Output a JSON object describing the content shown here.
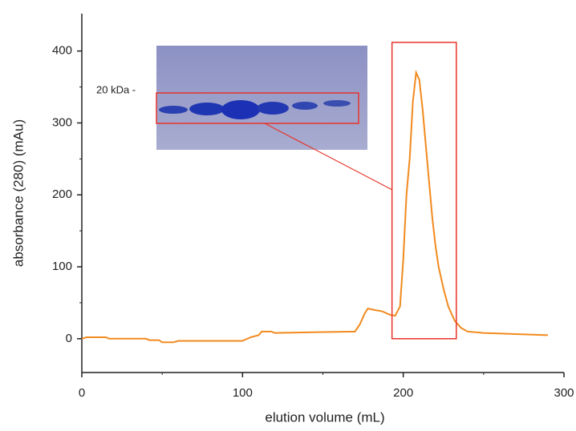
{
  "chart_data": {
    "type": "line",
    "xlabel": "elution volume (mL)",
    "ylabel": "absorbance (280) (mAu)",
    "x": [
      0,
      3,
      15,
      17,
      40,
      42,
      48,
      50,
      57,
      60,
      100,
      105,
      110,
      112,
      118,
      120,
      170,
      173,
      176,
      178,
      182,
      187,
      192,
      195,
      198,
      200,
      202,
      204,
      206,
      208,
      210,
      212,
      214,
      216,
      218,
      220,
      222,
      225,
      228,
      232,
      236,
      240,
      250,
      263,
      290
    ],
    "values": [
      0,
      2,
      2,
      0,
      0,
      -2,
      -2,
      -5,
      -5,
      -3,
      -3,
      2,
      5,
      10,
      10,
      8,
      10,
      20,
      35,
      42,
      40,
      38,
      33,
      32,
      45,
      110,
      200,
      250,
      330,
      370,
      360,
      320,
      270,
      220,
      170,
      130,
      100,
      70,
      45,
      25,
      15,
      10,
      8,
      7,
      5
    ],
    "color": "#f28a1e",
    "xlim": [
      0,
      300
    ],
    "xticks": [
      0,
      100,
      200,
      300
    ],
    "xminorticks": [
      50,
      150,
      250
    ],
    "ylim": [
      -47,
      452
    ],
    "yticks": [
      0,
      100,
      200,
      300,
      400
    ],
    "yminorticks": [
      50,
      150,
      250,
      350
    ],
    "highlight": {
      "xlim": [
        193,
        233
      ],
      "ylim": [
        0,
        412
      ],
      "color": "#e8342a"
    },
    "inset_label": "20 kDa -"
  }
}
